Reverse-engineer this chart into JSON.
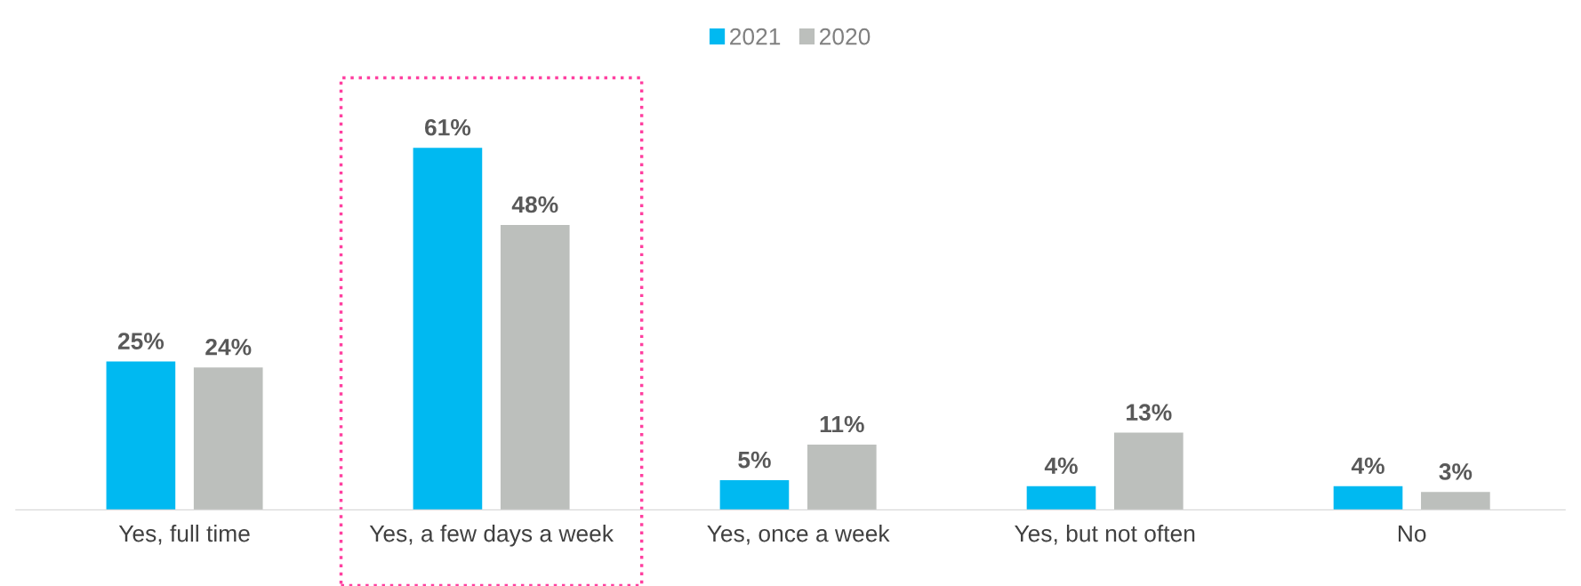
{
  "chart_data": {
    "type": "bar",
    "categories": [
      "Yes, full time",
      "Yes, a few days a week",
      "Yes, once a week",
      "Yes, but not often",
      "No"
    ],
    "series": [
      {
        "name": "2021",
        "color": "#00b9f1",
        "values": [
          25,
          61,
          5,
          4,
          4
        ],
        "value_labels": [
          "25%",
          "61%",
          "5%",
          "4%",
          "4%"
        ]
      },
      {
        "name": "2020",
        "color": "#bcbfbc",
        "values": [
          24,
          48,
          11,
          13,
          3
        ],
        "value_labels": [
          "24%",
          "48%",
          "11%",
          "13%",
          "3%"
        ]
      }
    ],
    "legend": "top",
    "grid": false
  }
}
